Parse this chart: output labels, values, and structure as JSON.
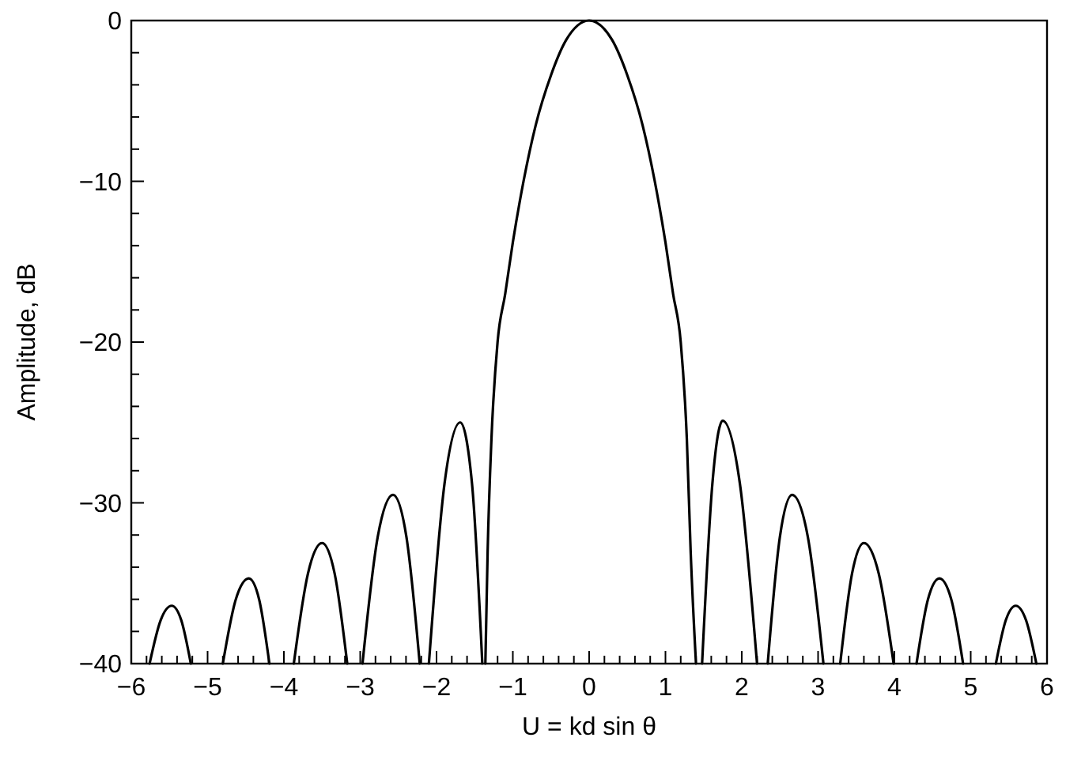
{
  "chart_data": {
    "type": "line",
    "xlabel": "U = kd sin θ",
    "ylabel": "Amplitude, dB",
    "xlim": [
      -6,
      6
    ],
    "ylim": [
      -40,
      0
    ],
    "xticks": [
      -6,
      {
        "value": -5.8,
        "label": null
      },
      {
        "value": -5.6,
        "label": null
      },
      {
        "value": -5.4,
        "label": null
      },
      {
        "value": -5.2,
        "label": null
      },
      -5,
      {
        "value": -4.8,
        "label": null
      },
      {
        "value": -4.6,
        "label": null
      },
      {
        "value": -4.4,
        "label": null
      },
      {
        "value": -4.2,
        "label": null
      },
      -4,
      {
        "value": -3.8,
        "label": null
      },
      {
        "value": -3.6,
        "label": null
      },
      {
        "value": -3.4,
        "label": null
      },
      {
        "value": -3.2,
        "label": null
      },
      -3,
      {
        "value": -2.8,
        "label": null
      },
      {
        "value": -2.6,
        "label": null
      },
      {
        "value": -2.4,
        "label": null
      },
      {
        "value": -2.2,
        "label": null
      },
      -2,
      {
        "value": -1.8,
        "label": null
      },
      {
        "value": -1.6,
        "label": null
      },
      {
        "value": -1.4,
        "label": null
      },
      {
        "value": -1.2,
        "label": null
      },
      -1,
      {
        "value": -0.8,
        "label": null
      },
      {
        "value": -0.6,
        "label": null
      },
      {
        "value": -0.4,
        "label": null
      },
      {
        "value": -0.2,
        "label": null
      },
      0,
      {
        "value": 0.2,
        "label": null
      },
      {
        "value": 0.4,
        "label": null
      },
      {
        "value": 0.6,
        "label": null
      },
      {
        "value": 0.8,
        "label": null
      },
      1,
      {
        "value": 1.2,
        "label": null
      },
      {
        "value": 1.4,
        "label": null
      },
      {
        "value": 1.6,
        "label": null
      },
      {
        "value": 1.8,
        "label": null
      },
      2,
      {
        "value": 2.2,
        "label": null
      },
      {
        "value": 2.4,
        "label": null
      },
      {
        "value": 2.6,
        "label": null
      },
      {
        "value": 2.8,
        "label": null
      },
      3,
      {
        "value": 3.2,
        "label": null
      },
      {
        "value": 3.4,
        "label": null
      },
      {
        "value": 3.6,
        "label": null
      },
      {
        "value": 3.8,
        "label": null
      },
      4,
      {
        "value": 4.2,
        "label": null
      },
      {
        "value": 4.4,
        "label": null
      },
      {
        "value": 4.6,
        "label": null
      },
      {
        "value": 4.8,
        "label": null
      },
      5,
      {
        "value": 5.2,
        "label": null
      },
      {
        "value": 5.4,
        "label": null
      },
      {
        "value": 5.6,
        "label": null
      },
      {
        "value": 5.8,
        "label": null
      },
      6
    ],
    "yticks": [
      -40,
      {
        "value": -38,
        "label": null
      },
      {
        "value": -36,
        "label": null
      },
      {
        "value": -34,
        "label": null
      },
      {
        "value": -32,
        "label": null
      },
      -30,
      {
        "value": -28,
        "label": null
      },
      {
        "value": -26,
        "label": null
      },
      {
        "value": -24,
        "label": null
      },
      {
        "value": -22,
        "label": null
      },
      -20,
      {
        "value": -18,
        "label": null
      },
      {
        "value": -16,
        "label": null
      },
      {
        "value": -14,
        "label": null
      },
      {
        "value": -12,
        "label": null
      },
      -10,
      {
        "value": -8,
        "label": null
      },
      {
        "value": -6,
        "label": null
      },
      {
        "value": -4,
        "label": null
      },
      {
        "value": -2,
        "label": null
      },
      0
    ],
    "grid": false,
    "marker": "none",
    "line_style": "solid",
    "series": [
      {
        "color": "#000000",
        "x": [
          -5.76,
          -5.615,
          -5.47,
          -5.345,
          -5.22,
          -5.0,
          -4.8,
          -4.63,
          -4.46,
          -4.325,
          -4.19,
          -4.0,
          -3.87,
          -3.685,
          -3.5,
          -3.335,
          -3.17,
          -3.07,
          -2.97,
          -2.77,
          -2.57,
          -2.395,
          -2.22,
          -2.16,
          -2.1,
          -1.895,
          -1.69,
          -1.535,
          -1.4,
          -1.38,
          -1.36,
          -1.33,
          -1.28,
          -1.2,
          -1.1,
          -1.0,
          -0.86,
          -0.7,
          -0.5,
          -0.3,
          0,
          0.3,
          0.5,
          0.7,
          0.86,
          1.0,
          1.1,
          1.2,
          1.28,
          1.33,
          1.4,
          1.44,
          1.48,
          1.615,
          1.75,
          1.975,
          2.2,
          2.27,
          2.34,
          2.5,
          2.66,
          2.865,
          3.07,
          3.18,
          3.29,
          3.445,
          3.6,
          3.795,
          3.99,
          4.14,
          4.29,
          4.44,
          4.59,
          4.745,
          4.9,
          5.1,
          5.33,
          5.46,
          5.59,
          5.725,
          5.86
        ],
        "values": [
          -40,
          -37.3,
          -36.4,
          -37.3,
          -40,
          null,
          -40,
          -36.0,
          -34.7,
          -36.0,
          -40,
          null,
          -40,
          -34.4,
          -32.5,
          -34.4,
          -40,
          null,
          -40,
          -32.1,
          -29.5,
          -32.1,
          -40,
          null,
          -40,
          -28.8,
          -25.0,
          -28.8,
          -40,
          null,
          -40,
          -33,
          -26,
          -20,
          -17,
          -13.8,
          -10,
          -6.5,
          -3.4,
          -1.2,
          0,
          -1.2,
          -3.4,
          -6.5,
          -10,
          -13.8,
          -17,
          -20,
          -26,
          -33,
          -40,
          null,
          -40,
          -28.8,
          -24.9,
          -28.8,
          -40,
          null,
          -40,
          -32.1,
          -29.5,
          -32.1,
          -40,
          null,
          -40,
          -34.4,
          -32.5,
          -34.4,
          -40,
          null,
          -40,
          -36.0,
          -34.7,
          -36.0,
          -40,
          null,
          -40,
          -37.3,
          -36.4,
          -37.3,
          -40
        ]
      }
    ]
  }
}
